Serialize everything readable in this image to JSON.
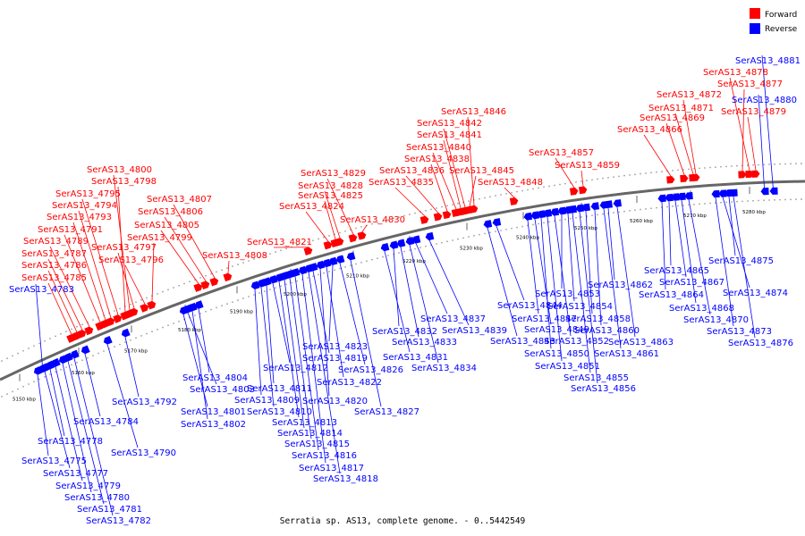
{
  "legend": {
    "items": [
      {
        "label": "Forward",
        "color": "#ff0000"
      },
      {
        "label": "Reverse",
        "color": "#0000ff"
      }
    ]
  },
  "caption": "Serratia sp. AS13, complete genome. - 0..5442549",
  "strand_colors": {
    "forward": "#ff0000",
    "reverse": "#0000ff",
    "backbone": "#666666",
    "dots": "#a0a0a0"
  },
  "ticks": [
    "5150 kbp",
    "5160 kbp",
    "5170 kbp",
    "5180 kbp",
    "5190 kbp",
    "5200 kbp",
    "5210 kbp",
    "5220 kbp",
    "5230 kbp",
    "5240 kbp",
    "5250 kbp",
    "5260 kbp",
    "5270 kbp",
    "5280 kbp"
  ],
  "genes": [
    {
      "name": "SerAS13_4775",
      "strand": "reverse"
    },
    {
      "name": "SerAS13_4777",
      "strand": "reverse"
    },
    {
      "name": "SerAS13_4778",
      "strand": "reverse"
    },
    {
      "name": "SerAS13_4779",
      "strand": "reverse"
    },
    {
      "name": "SerAS13_4780",
      "strand": "reverse"
    },
    {
      "name": "SerAS13_4781",
      "strand": "reverse"
    },
    {
      "name": "SerAS13_4782",
      "strand": "reverse"
    },
    {
      "name": "SerAS13_4783",
      "strand": "reverse"
    },
    {
      "name": "SerAS13_4784",
      "strand": "reverse"
    },
    {
      "name": "SerAS13_4785",
      "strand": "forward"
    },
    {
      "name": "SerAS13_4786",
      "strand": "forward"
    },
    {
      "name": "SerAS13_4787",
      "strand": "forward"
    },
    {
      "name": "SerAS13_4789",
      "strand": "forward"
    },
    {
      "name": "SerAS13_4790",
      "strand": "reverse"
    },
    {
      "name": "SerAS13_4791",
      "strand": "forward"
    },
    {
      "name": "SerAS13_4792",
      "strand": "reverse"
    },
    {
      "name": "SerAS13_4793",
      "strand": "forward"
    },
    {
      "name": "SerAS13_4794",
      "strand": "forward"
    },
    {
      "name": "SerAS13_4795",
      "strand": "forward"
    },
    {
      "name": "SerAS13_4796",
      "strand": "forward"
    },
    {
      "name": "SerAS13_4797",
      "strand": "forward"
    },
    {
      "name": "SerAS13_4798",
      "strand": "forward"
    },
    {
      "name": "SerAS13_4799",
      "strand": "forward"
    },
    {
      "name": "SerAS13_4800",
      "strand": "forward"
    },
    {
      "name": "SerAS13_4801",
      "strand": "reverse"
    },
    {
      "name": "SerAS13_4802",
      "strand": "reverse"
    },
    {
      "name": "SerAS13_4803",
      "strand": "reverse"
    },
    {
      "name": "SerAS13_4804",
      "strand": "reverse"
    },
    {
      "name": "SerAS13_4805",
      "strand": "forward"
    },
    {
      "name": "SerAS13_4806",
      "strand": "forward"
    },
    {
      "name": "SerAS13_4807",
      "strand": "forward"
    },
    {
      "name": "SerAS13_4808",
      "strand": "forward"
    },
    {
      "name": "SerAS13_4809",
      "strand": "reverse"
    },
    {
      "name": "SerAS13_4810",
      "strand": "reverse"
    },
    {
      "name": "SerAS13_4811",
      "strand": "reverse"
    },
    {
      "name": "SerAS13_4812",
      "strand": "reverse"
    },
    {
      "name": "SerAS13_4813",
      "strand": "reverse"
    },
    {
      "name": "SerAS13_4814",
      "strand": "reverse"
    },
    {
      "name": "SerAS13_4815",
      "strand": "reverse"
    },
    {
      "name": "SerAS13_4816",
      "strand": "reverse"
    },
    {
      "name": "SerAS13_4817",
      "strand": "reverse"
    },
    {
      "name": "SerAS13_4818",
      "strand": "reverse"
    },
    {
      "name": "SerAS13_4819",
      "strand": "reverse"
    },
    {
      "name": "SerAS13_4820",
      "strand": "reverse"
    },
    {
      "name": "SerAS13_4821",
      "strand": "forward"
    },
    {
      "name": "SerAS13_4822",
      "strand": "reverse"
    },
    {
      "name": "SerAS13_4823",
      "strand": "reverse"
    },
    {
      "name": "SerAS13_4824",
      "strand": "forward"
    },
    {
      "name": "SerAS13_4825",
      "strand": "forward"
    },
    {
      "name": "SerAS13_4826",
      "strand": "reverse"
    },
    {
      "name": "SerAS13_4827",
      "strand": "reverse"
    },
    {
      "name": "SerAS13_4828",
      "strand": "forward"
    },
    {
      "name": "SerAS13_4829",
      "strand": "forward"
    },
    {
      "name": "SerAS13_4830",
      "strand": "forward"
    },
    {
      "name": "SerAS13_4831",
      "strand": "reverse"
    },
    {
      "name": "SerAS13_4832",
      "strand": "reverse"
    },
    {
      "name": "SerAS13_4833",
      "strand": "reverse"
    },
    {
      "name": "SerAS13_4834",
      "strand": "reverse"
    },
    {
      "name": "SerAS13_4835",
      "strand": "forward"
    },
    {
      "name": "SerAS13_4836",
      "strand": "forward"
    },
    {
      "name": "SerAS13_4837",
      "strand": "reverse"
    },
    {
      "name": "SerAS13_4838",
      "strand": "forward"
    },
    {
      "name": "SerAS13_4839",
      "strand": "reverse"
    },
    {
      "name": "SerAS13_4840",
      "strand": "forward"
    },
    {
      "name": "SerAS13_4841",
      "strand": "forward"
    },
    {
      "name": "SerAS13_4842",
      "strand": "forward"
    },
    {
      "name": "SerAS13_4843",
      "strand": "reverse"
    },
    {
      "name": "SerAS13_4844",
      "strand": "reverse"
    },
    {
      "name": "SerAS13_4845",
      "strand": "forward"
    },
    {
      "name": "SerAS13_4846",
      "strand": "forward"
    },
    {
      "name": "SerAS13_4847",
      "strand": "reverse"
    },
    {
      "name": "SerAS13_4848",
      "strand": "forward"
    },
    {
      "name": "SerAS13_4849",
      "strand": "reverse"
    },
    {
      "name": "SerAS13_4850",
      "strand": "reverse"
    },
    {
      "name": "SerAS13_4851",
      "strand": "reverse"
    },
    {
      "name": "SerAS13_4852",
      "strand": "reverse"
    },
    {
      "name": "SerAS13_4853",
      "strand": "reverse"
    },
    {
      "name": "SerAS13_4854",
      "strand": "reverse"
    },
    {
      "name": "SerAS13_4855",
      "strand": "reverse"
    },
    {
      "name": "SerAS13_4856",
      "strand": "reverse"
    },
    {
      "name": "SerAS13_4857",
      "strand": "forward"
    },
    {
      "name": "SerAS13_4858",
      "strand": "reverse"
    },
    {
      "name": "SerAS13_4859",
      "strand": "forward"
    },
    {
      "name": "SerAS13_4860",
      "strand": "reverse"
    },
    {
      "name": "SerAS13_4861",
      "strand": "reverse"
    },
    {
      "name": "SerAS13_4862",
      "strand": "reverse"
    },
    {
      "name": "SerAS13_4863",
      "strand": "reverse"
    },
    {
      "name": "SerAS13_4864",
      "strand": "reverse"
    },
    {
      "name": "SerAS13_4865",
      "strand": "reverse"
    },
    {
      "name": "SerAS13_4866",
      "strand": "forward"
    },
    {
      "name": "SerAS13_4867",
      "strand": "reverse"
    },
    {
      "name": "SerAS13_4868",
      "strand": "reverse"
    },
    {
      "name": "SerAS13_4869",
      "strand": "forward"
    },
    {
      "name": "SerAS13_4870",
      "strand": "reverse"
    },
    {
      "name": "SerAS13_4871",
      "strand": "forward"
    },
    {
      "name": "SerAS13_4872",
      "strand": "forward"
    },
    {
      "name": "SerAS13_4873",
      "strand": "reverse"
    },
    {
      "name": "SerAS13_4874",
      "strand": "reverse"
    },
    {
      "name": "SerAS13_4875",
      "strand": "reverse"
    },
    {
      "name": "SerAS13_4876",
      "strand": "reverse"
    },
    {
      "name": "SerAS13_4877",
      "strand": "forward"
    },
    {
      "name": "SerAS13_4878",
      "strand": "forward"
    },
    {
      "name": "SerAS13_4879",
      "strand": "forward"
    },
    {
      "name": "SerAS13_4880",
      "strand": "reverse"
    },
    {
      "name": "SerAS13_4881",
      "strand": "reverse"
    }
  ]
}
